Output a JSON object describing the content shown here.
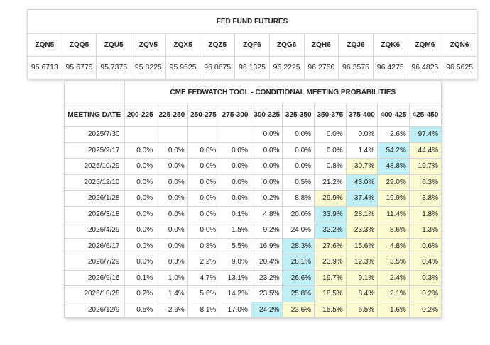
{
  "futures": {
    "title": "FED FUND FUTURES",
    "codes": [
      "ZQN5",
      "ZQQ5",
      "ZQU5",
      "ZQV5",
      "ZQX5",
      "ZQZ5",
      "ZQF6",
      "ZQG6",
      "ZQH6",
      "ZQJ6",
      "ZQK6",
      "ZQM6",
      "ZQN6"
    ],
    "prices": [
      "95.6713",
      "95.6775",
      "95.7375",
      "95.8225",
      "95.9525",
      "96.0675",
      "96.1325",
      "96.2225",
      "96.2750",
      "96.3575",
      "96.4275",
      "96.4825",
      "96.5625"
    ]
  },
  "probabilities": {
    "title": "CME FEDWATCH TOOL - CONDITIONAL MEETING PROBABILITIES",
    "date_header": "MEETING DATE",
    "ranges": [
      "200-225",
      "225-250",
      "250-275",
      "275-300",
      "300-325",
      "325-350",
      "350-375",
      "375-400",
      "400-425",
      "425-450"
    ],
    "rows": [
      {
        "date": "2025/7/30",
        "values": [
          "",
          "",
          "",
          "",
          "0.0%",
          "0.0%",
          "0.0%",
          "0.0%",
          "2.6%",
          "97.4%"
        ],
        "hl": [
          "",
          "",
          "",
          "",
          "",
          "",
          "",
          "",
          "",
          "b"
        ]
      },
      {
        "date": "2025/9/17",
        "values": [
          "0.0%",
          "0.0%",
          "0.0%",
          "0.0%",
          "0.0%",
          "0.0%",
          "0.0%",
          "1.4%",
          "54.2%",
          "44.4%"
        ],
        "hl": [
          "",
          "",
          "",
          "",
          "",
          "",
          "",
          "",
          "b",
          "y"
        ]
      },
      {
        "date": "2025/10/29",
        "values": [
          "0.0%",
          "0.0%",
          "0.0%",
          "0.0%",
          "0.0%",
          "0.0%",
          "0.8%",
          "30.7%",
          "48.8%",
          "19.7%"
        ],
        "hl": [
          "",
          "",
          "",
          "",
          "",
          "",
          "",
          "y",
          "b",
          "y"
        ]
      },
      {
        "date": "2025/12/10",
        "values": [
          "0.0%",
          "0.0%",
          "0.0%",
          "0.0%",
          "0.0%",
          "0.5%",
          "21.2%",
          "43.0%",
          "29.0%",
          "6.3%"
        ],
        "hl": [
          "",
          "",
          "",
          "",
          "",
          "",
          "",
          "b",
          "y",
          "y"
        ]
      },
      {
        "date": "2026/1/28",
        "values": [
          "0.0%",
          "0.0%",
          "0.0%",
          "0.0%",
          "0.2%",
          "8.8%",
          "29.9%",
          "37.4%",
          "19.9%",
          "3.8%"
        ],
        "hl": [
          "",
          "",
          "",
          "",
          "",
          "",
          "y",
          "b",
          "y",
          "y"
        ]
      },
      {
        "date": "2026/3/18",
        "values": [
          "0.0%",
          "0.0%",
          "0.0%",
          "0.1%",
          "4.8%",
          "20.0%",
          "33.9%",
          "28.1%",
          "11.4%",
          "1.8%"
        ],
        "hl": [
          "",
          "",
          "",
          "",
          "",
          "",
          "b",
          "y",
          "y",
          "y"
        ]
      },
      {
        "date": "2026/4/29",
        "values": [
          "0.0%",
          "0.0%",
          "0.0%",
          "1.5%",
          "9.2%",
          "24.0%",
          "32.2%",
          "23.3%",
          "8.6%",
          "1.3%"
        ],
        "hl": [
          "",
          "",
          "",
          "",
          "",
          "",
          "b",
          "y",
          "y",
          "y"
        ]
      },
      {
        "date": "2026/6/17",
        "values": [
          "0.0%",
          "0.0%",
          "0.8%",
          "5.5%",
          "16.9%",
          "28.3%",
          "27.6%",
          "15.6%",
          "4.8%",
          "0.6%"
        ],
        "hl": [
          "",
          "",
          "",
          "",
          "",
          "b",
          "y",
          "y",
          "y",
          "y"
        ]
      },
      {
        "date": "2026/7/29",
        "values": [
          "0.0%",
          "0.3%",
          "2.2%",
          "9.0%",
          "20.4%",
          "28.1%",
          "23.9%",
          "12.3%",
          "3.5%",
          "0.4%"
        ],
        "hl": [
          "",
          "",
          "",
          "",
          "",
          "b",
          "y",
          "y",
          "y",
          "y"
        ]
      },
      {
        "date": "2026/9/16",
        "values": [
          "0.1%",
          "1.0%",
          "4.7%",
          "13.1%",
          "23.2%",
          "26.6%",
          "19.7%",
          "9.1%",
          "2.4%",
          "0.3%"
        ],
        "hl": [
          "",
          "",
          "",
          "",
          "",
          "b",
          "y",
          "y",
          "y",
          "y"
        ]
      },
      {
        "date": "2026/10/28",
        "values": [
          "0.2%",
          "1.4%",
          "5.6%",
          "14.2%",
          "23.5%",
          "25.8%",
          "18.5%",
          "8.4%",
          "2.1%",
          "0.2%"
        ],
        "hl": [
          "",
          "",
          "",
          "",
          "",
          "b",
          "y",
          "y",
          "y",
          "y"
        ]
      },
      {
        "date": "2026/12/9",
        "values": [
          "0.5%",
          "2.6%",
          "8.1%",
          "17.0%",
          "24.2%",
          "23.6%",
          "15.5%",
          "6.5%",
          "1.6%",
          "0.2%"
        ],
        "hl": [
          "",
          "",
          "",
          "",
          "b",
          "y",
          "y",
          "y",
          "y",
          "y"
        ]
      }
    ]
  },
  "colors": {
    "highlight_max": "#bff0f6",
    "highlight_above": "#fbfad0",
    "border": "#d6d6d6"
  }
}
